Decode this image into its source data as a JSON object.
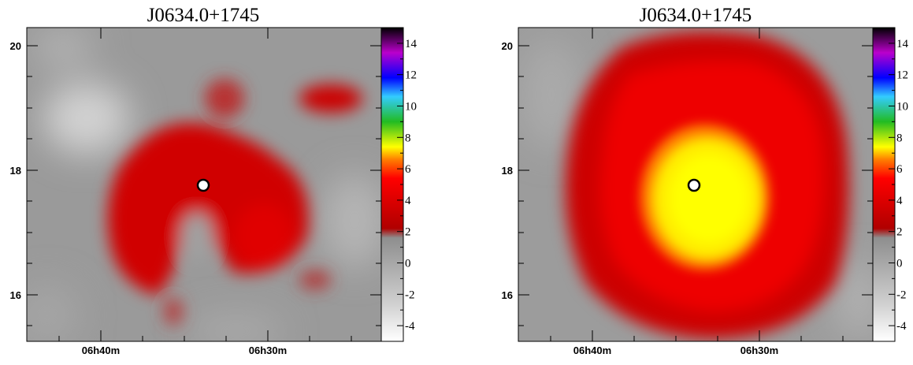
{
  "charts": [
    {
      "title": "J0634.0+1745",
      "source_marker": {
        "ra_label_position": "06h34.0m",
        "dec": 17.75
      }
    },
    {
      "title": "J0634.0+1745",
      "source_marker": {
        "ra_label_position": "06h34.0m",
        "dec": 17.75
      }
    }
  ],
  "chart_data": [
    {
      "type": "heatmap",
      "title": "J0634.0+1745",
      "x_tick_labels": [
        "06h40m",
        "06h30m"
      ],
      "y_tick_labels": [
        "16",
        "18",
        "20"
      ],
      "ylim": [
        15.3,
        20.2
      ],
      "colorbar": {
        "ticks": [
          "-4",
          "-2",
          "0",
          "2",
          "4",
          "6",
          "8",
          "10",
          "12",
          "14"
        ],
        "range": [
          -5,
          15
        ]
      },
      "colormap": [
        "#ffffff",
        "#c8c8c8",
        "#8e8e8e",
        "#cc0000",
        "#ff0000",
        "#ffff00",
        "#2ecc40",
        "#33ccff",
        "#0000ff",
        "#cc00cc",
        "#000000"
      ],
      "grid": false
    },
    {
      "type": "heatmap",
      "title": "J0634.0+1745",
      "x_tick_labels": [
        "06h40m",
        "06h30m"
      ],
      "y_tick_labels": [
        "16",
        "18",
        "20"
      ],
      "ylim": [
        15.3,
        20.2
      ],
      "colorbar": {
        "ticks": [
          "-4",
          "-2",
          "0",
          "2",
          "4",
          "6",
          "8",
          "10",
          "12",
          "14"
        ],
        "range": [
          -5,
          15
        ]
      },
      "colormap": [
        "#ffffff",
        "#c8c8c8",
        "#8e8e8e",
        "#cc0000",
        "#ff0000",
        "#ffff00",
        "#2ecc40",
        "#33ccff",
        "#0000ff",
        "#cc00cc",
        "#000000"
      ],
      "grid": false
    }
  ]
}
